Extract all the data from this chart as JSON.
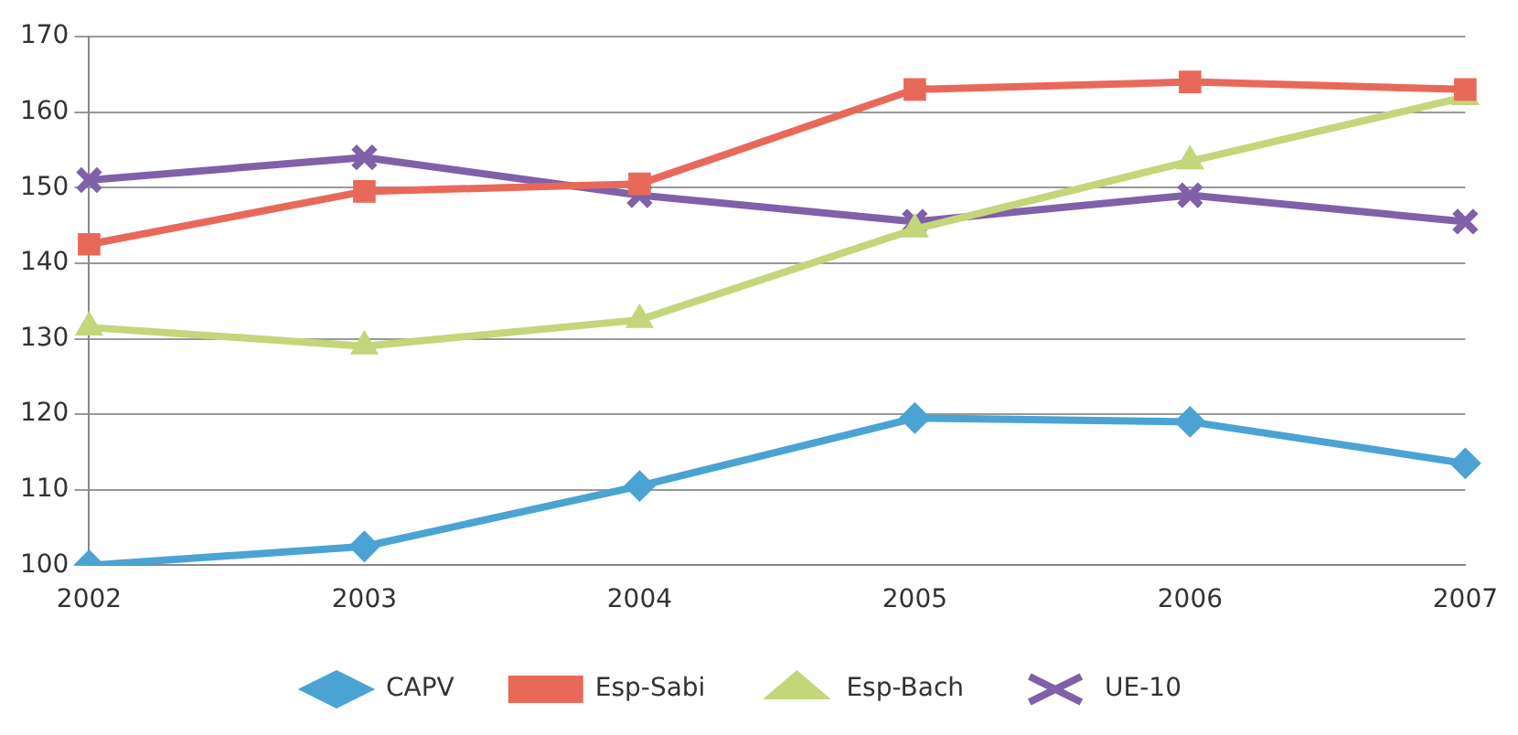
{
  "chart_data": {
    "type": "line",
    "categories": [
      "2002",
      "2003",
      "2004",
      "2005",
      "2006",
      "2007"
    ],
    "series": [
      {
        "name": "CAPV",
        "color": "#4aa3d3",
        "marker": "diamond",
        "values": [
          100,
          102.5,
          110.5,
          119.5,
          119,
          113.5
        ]
      },
      {
        "name": "Esp-Sabi",
        "color": "#e8695a",
        "marker": "square",
        "values": [
          142.5,
          149.5,
          150.5,
          163,
          164,
          163
        ]
      },
      {
        "name": "Esp-Bach",
        "color": "#c4d67a",
        "marker": "triangle",
        "values": [
          131.5,
          129,
          132.5,
          144.5,
          153.5,
          162
        ]
      },
      {
        "name": "UE-10",
        "color": "#8060a8",
        "marker": "cross",
        "values": [
          151,
          154,
          149,
          145.5,
          149,
          145.5
        ]
      }
    ],
    "ylim": [
      100,
      170
    ],
    "yticks": [
      100,
      110,
      120,
      130,
      140,
      150,
      160,
      170
    ],
    "grid": "y",
    "legend": "bottom"
  }
}
